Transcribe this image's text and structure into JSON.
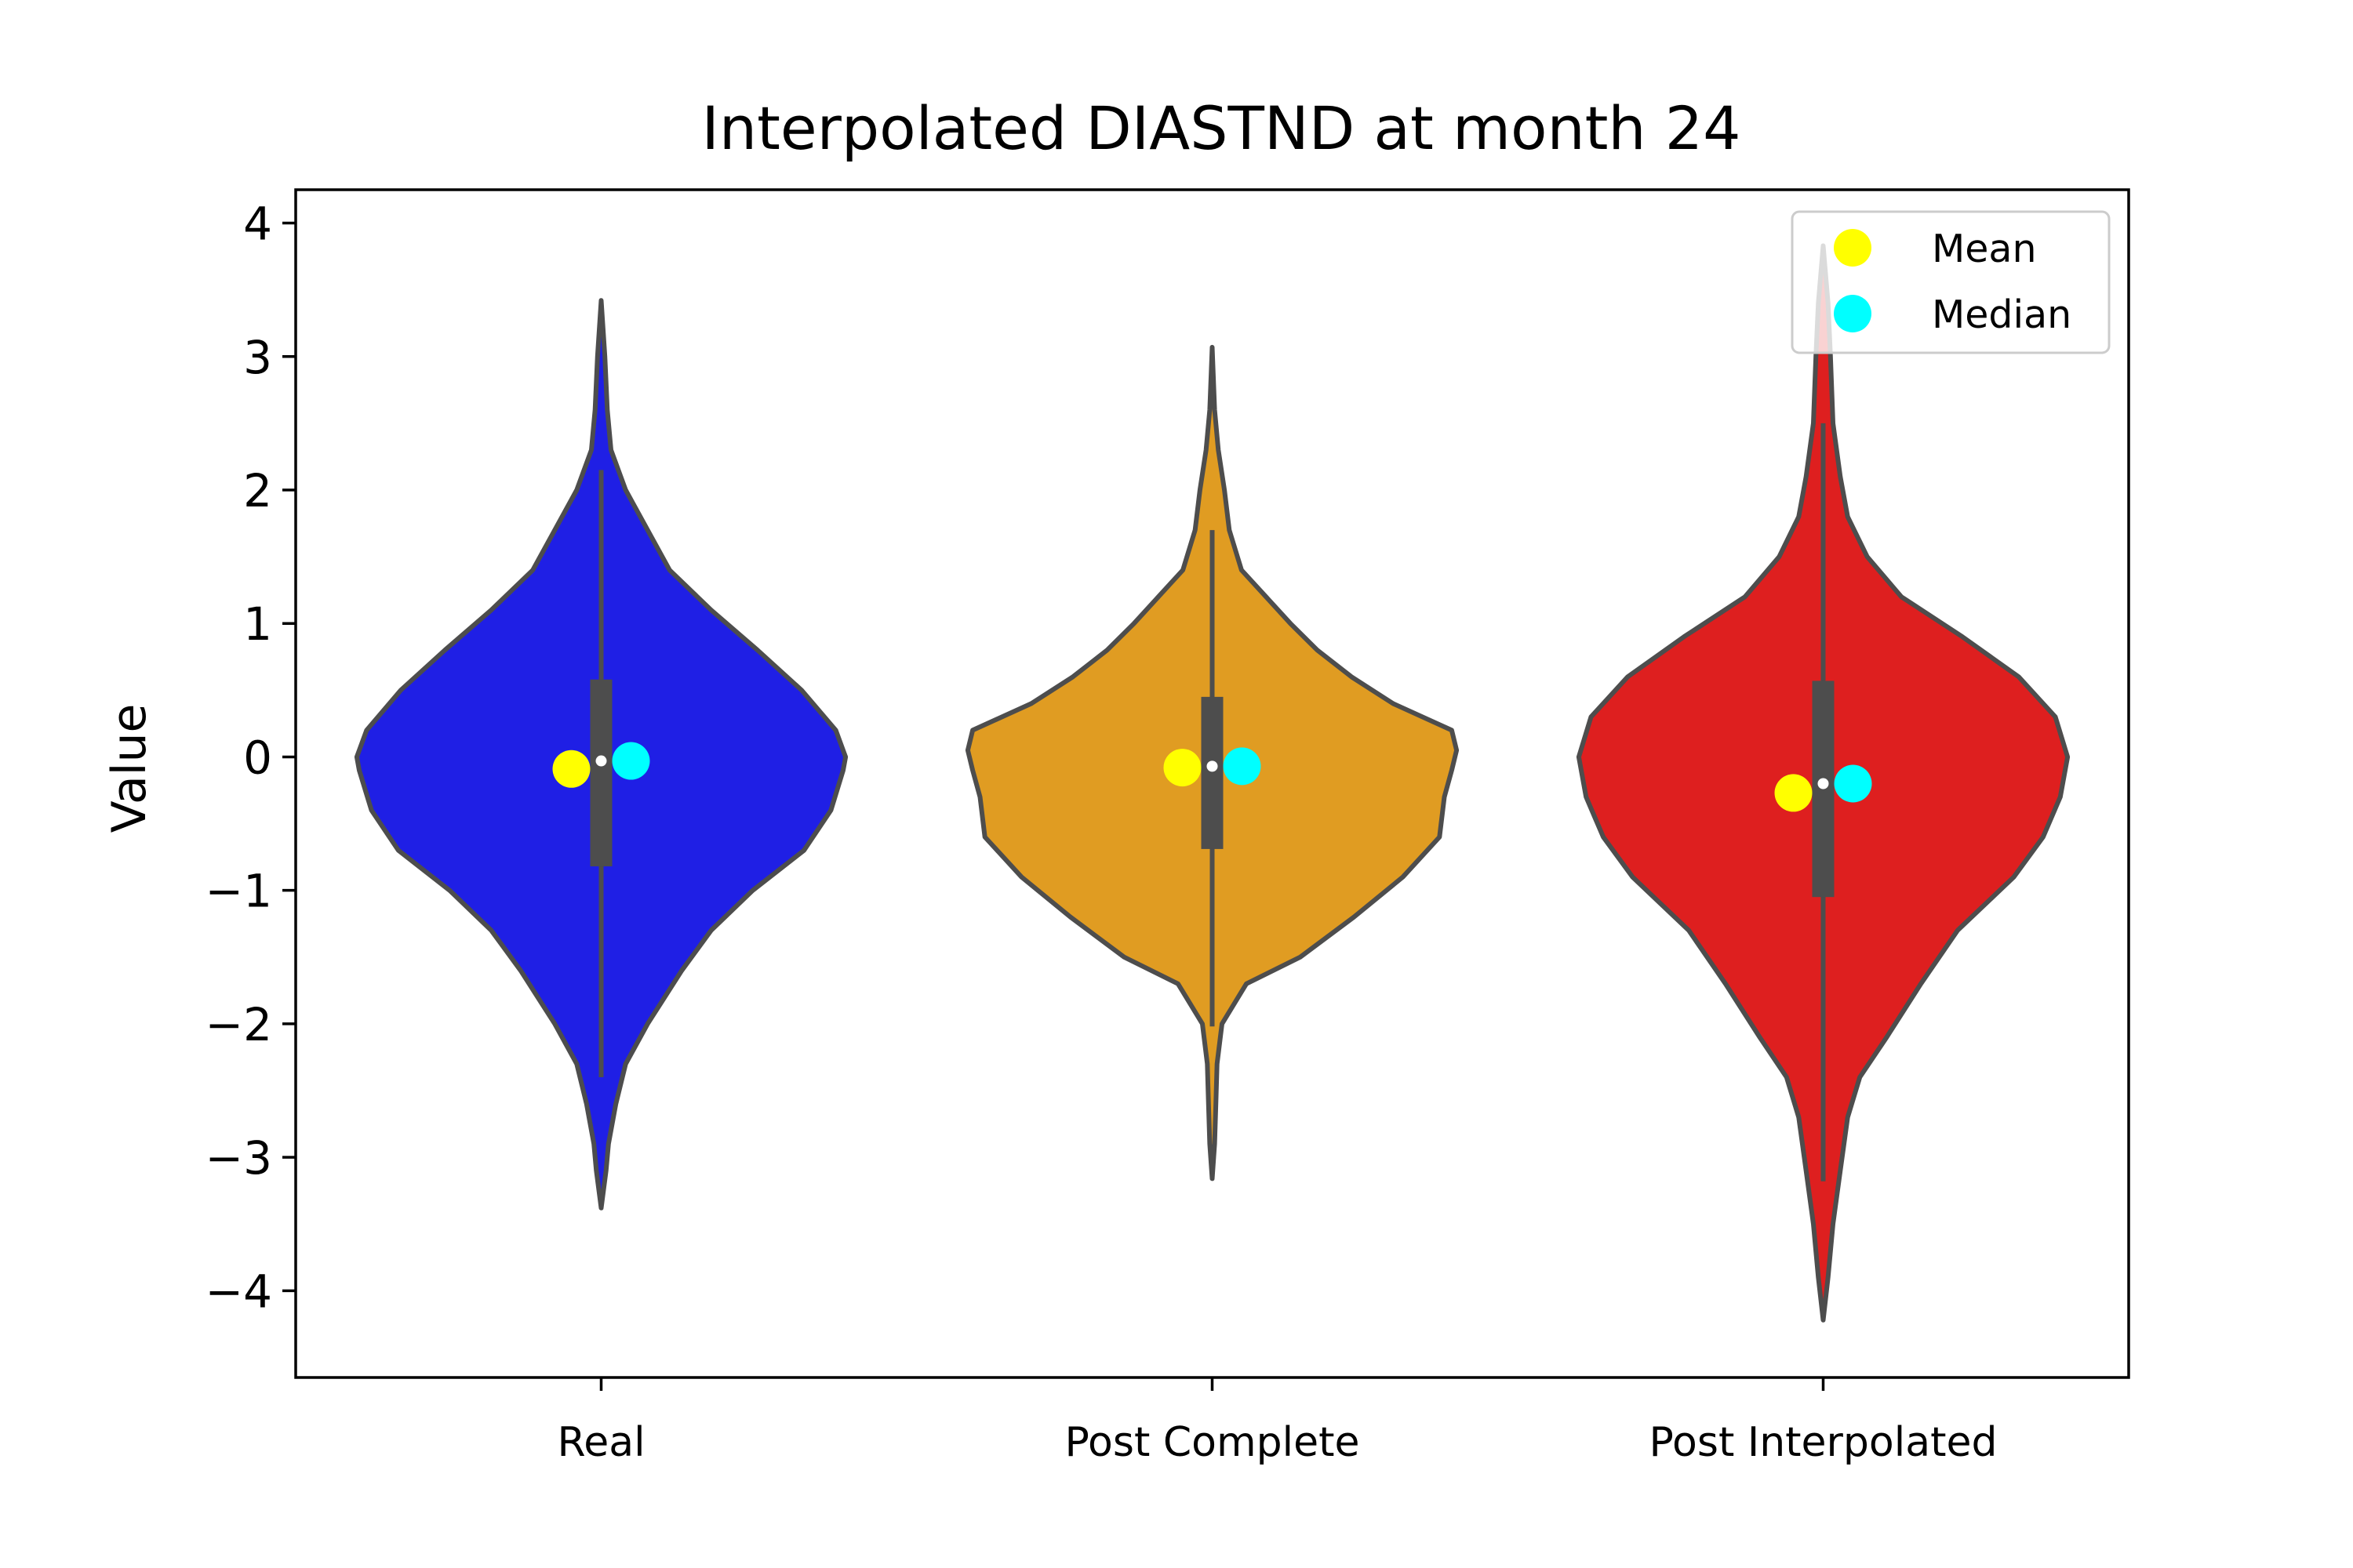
{
  "chart_data": {
    "type": "violin",
    "title": "Interpolated DIASTND at month 24",
    "xlabel": "",
    "ylabel": "Value",
    "ylim": [
      -4.65,
      4.25
    ],
    "yticks": [
      -4,
      -3,
      -2,
      -1,
      0,
      1,
      2,
      3,
      4
    ],
    "ytick_labels": [
      "−4",
      "−3",
      "−2",
      "−1",
      "0",
      "1",
      "2",
      "3",
      "4"
    ],
    "categories": [
      "Real",
      "Post Complete",
      "Post Interpolated"
    ],
    "grid": false,
    "legend": {
      "placement": "upper-right",
      "entries": [
        {
          "label": "Mean",
          "color": "#ffff00"
        },
        {
          "label": "Median",
          "color": "#00ffff"
        }
      ]
    },
    "series": [
      {
        "category": "Real",
        "color": "#1f1fe5",
        "range": [
          -3.38,
          3.42
        ],
        "whiskers": [
          -2.4,
          2.15
        ],
        "quartiles": [
          -0.82,
          0.58
        ],
        "median": -0.03,
        "mean": -0.09,
        "density": [
          [
            -3.38,
            0.0
          ],
          [
            -3.1,
            0.02
          ],
          [
            -2.9,
            0.03
          ],
          [
            -2.6,
            0.06
          ],
          [
            -2.3,
            0.1
          ],
          [
            -2.0,
            0.19
          ],
          [
            -1.6,
            0.33
          ],
          [
            -1.3,
            0.45
          ],
          [
            -1.0,
            0.62
          ],
          [
            -0.7,
            0.83
          ],
          [
            -0.4,
            0.94
          ],
          [
            -0.1,
            0.99
          ],
          [
            0.0,
            1.0
          ],
          [
            0.2,
            0.96
          ],
          [
            0.5,
            0.82
          ],
          [
            0.8,
            0.64
          ],
          [
            1.1,
            0.45
          ],
          [
            1.4,
            0.28
          ],
          [
            1.7,
            0.19
          ],
          [
            2.0,
            0.1
          ],
          [
            2.3,
            0.04
          ],
          [
            2.6,
            0.025
          ],
          [
            3.0,
            0.015
          ],
          [
            3.42,
            0.0
          ]
        ]
      },
      {
        "category": "Post Complete",
        "color": "#e09c22",
        "range": [
          -3.16,
          3.07
        ],
        "whiskers": [
          -2.02,
          1.7
        ],
        "quartiles": [
          -0.69,
          0.45
        ],
        "median": -0.07,
        "mean": -0.08,
        "density": [
          [
            -3.16,
            0.0
          ],
          [
            -2.9,
            0.01
          ],
          [
            -2.6,
            0.015
          ],
          [
            -2.3,
            0.02
          ],
          [
            -2.0,
            0.04
          ],
          [
            -1.7,
            0.14
          ],
          [
            -1.5,
            0.36
          ],
          [
            -1.2,
            0.58
          ],
          [
            -0.9,
            0.78
          ],
          [
            -0.6,
            0.93
          ],
          [
            -0.3,
            0.95
          ],
          [
            -0.1,
            0.98
          ],
          [
            0.05,
            1.0
          ],
          [
            0.2,
            0.98
          ],
          [
            0.4,
            0.74
          ],
          [
            0.6,
            0.57
          ],
          [
            0.8,
            0.43
          ],
          [
            1.0,
            0.32
          ],
          [
            1.2,
            0.22
          ],
          [
            1.4,
            0.12
          ],
          [
            1.7,
            0.07
          ],
          [
            2.0,
            0.05
          ],
          [
            2.3,
            0.025
          ],
          [
            2.6,
            0.01
          ],
          [
            3.07,
            0.0
          ]
        ]
      },
      {
        "category": "Post Interpolated",
        "color": "#de1f1f",
        "range": [
          -4.22,
          3.83
        ],
        "whiskers": [
          -3.18,
          2.5
        ],
        "quartiles": [
          -1.05,
          0.57
        ],
        "median": -0.2,
        "mean": -0.27,
        "density": [
          [
            -4.22,
            0.0
          ],
          [
            -3.9,
            0.02
          ],
          [
            -3.5,
            0.04
          ],
          [
            -3.1,
            0.07
          ],
          [
            -2.7,
            0.1
          ],
          [
            -2.4,
            0.15
          ],
          [
            -2.1,
            0.26
          ],
          [
            -1.7,
            0.4
          ],
          [
            -1.3,
            0.55
          ],
          [
            -0.9,
            0.78
          ],
          [
            -0.6,
            0.9
          ],
          [
            -0.3,
            0.97
          ],
          [
            0.0,
            1.0
          ],
          [
            0.3,
            0.95
          ],
          [
            0.6,
            0.8
          ],
          [
            0.9,
            0.57
          ],
          [
            1.2,
            0.32
          ],
          [
            1.5,
            0.18
          ],
          [
            1.8,
            0.1
          ],
          [
            2.1,
            0.07
          ],
          [
            2.5,
            0.04
          ],
          [
            3.0,
            0.03
          ],
          [
            3.4,
            0.02
          ],
          [
            3.83,
            0.0
          ]
        ]
      }
    ]
  }
}
